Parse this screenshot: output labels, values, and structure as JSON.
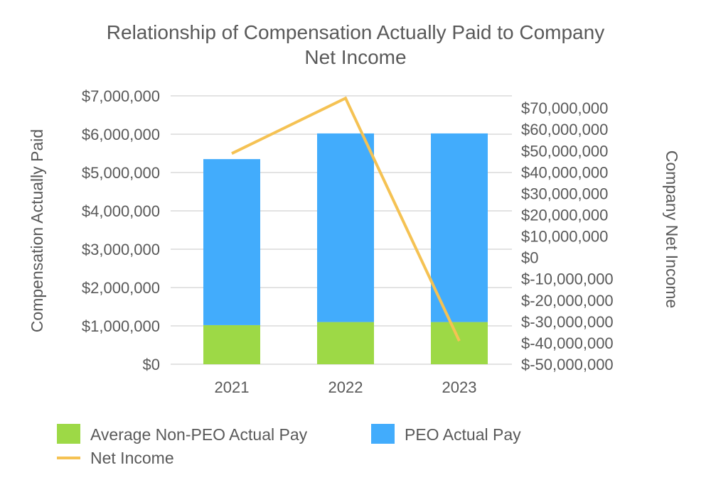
{
  "chart_data": {
    "type": "bar",
    "subtype": "stacked bar with line on secondary axis",
    "title": "Relationship of Compensation Actually Paid to Company Net Income",
    "title_lines": [
      "Relationship of Compensation Actually Paid to Company",
      "Net Income"
    ],
    "categories": [
      "2021",
      "2022",
      "2023"
    ],
    "ylabel": "Compensation Actually Paid",
    "ylabel2": "Company Net Income",
    "ylim": [
      0,
      7000000
    ],
    "ylim2": [
      -50000000,
      75700000
    ],
    "yticks": [
      "$0",
      "$1,000,000",
      "$2,000,000",
      "$3,000,000",
      "$4,000,000",
      "$5,000,000",
      "$6,000,000",
      "$7,000,000"
    ],
    "yticks2": [
      "$-50,000,000",
      "$-40,000,000",
      "$-30,000,000",
      "$-20,000,000",
      "$-10,000,000",
      "$0",
      "$10,000,000",
      "$20,000,000",
      "$30,000,000",
      "$40,000,000",
      "$50,000,000",
      "$60,000,000",
      "$70,000,000"
    ],
    "grid": true,
    "legend_position": "bottom-left",
    "series": [
      {
        "name": "Average Non-PEO Actual Pay",
        "type": "bar",
        "axis": "left",
        "color": "#9dd946",
        "values": [
          1020000,
          1100000,
          1100000
        ]
      },
      {
        "name": "PEO Actual Pay",
        "type": "bar",
        "axis": "left",
        "color": "#42acfc",
        "values": [
          4330000,
          4920000,
          4920000
        ]
      },
      {
        "name": "Net Income",
        "type": "line",
        "axis": "right",
        "color": "#f5c253",
        "values": [
          48700000,
          74600000,
          -39100000
        ]
      }
    ]
  }
}
